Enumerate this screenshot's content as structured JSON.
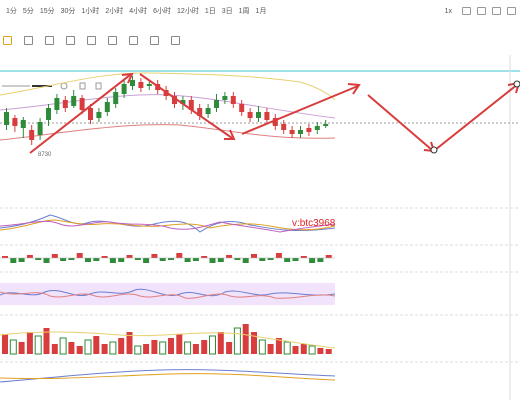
{
  "toolbar": {
    "timeframes": [
      "1分",
      "5分",
      "15分",
      "30分",
      "1小时",
      "2小时",
      "4小时",
      "6小时",
      "12小时",
      "1日",
      "3日",
      "1周",
      "1月"
    ],
    "zoom_label": "1x"
  },
  "price_label": "8730",
  "watermark": "v:btc3968",
  "colors": {
    "up": "#2e8b3a",
    "down": "#d93c3c",
    "arrow": "#d93c3c",
    "cyan": "#3ec6d6"
  }
}
